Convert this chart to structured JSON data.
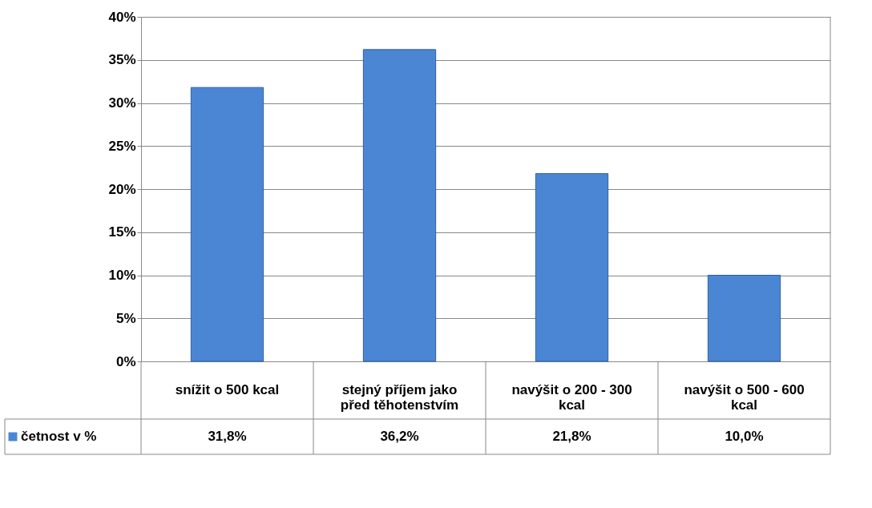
{
  "chart_data": {
    "type": "bar",
    "categories": [
      "snížit o 500 kcal",
      "stejný příjem jako před těhotenstvím",
      "navýšit o 200 - 300 kcal",
      "navýšit o 500 - 600 kcal"
    ],
    "series": [
      {
        "name": "četnost v %",
        "color": "#4a86d4",
        "values": [
          31.8,
          36.2,
          21.8,
          10.0
        ],
        "value_labels": [
          "31,8%",
          "36,2%",
          "21,8%",
          "10,0%"
        ]
      }
    ],
    "ylim": [
      0,
      40
    ],
    "yticks": [
      {
        "value": 0,
        "label": "0%"
      },
      {
        "value": 5,
        "label": "5%"
      },
      {
        "value": 10,
        "label": "10%"
      },
      {
        "value": 15,
        "label": "15%"
      },
      {
        "value": 20,
        "label": "20%"
      },
      {
        "value": 25,
        "label": "25%"
      },
      {
        "value": 30,
        "label": "30%"
      },
      {
        "value": 35,
        "label": "35%"
      },
      {
        "value": 40,
        "label": "40%"
      }
    ],
    "grid": "y",
    "legend": "bottom left"
  }
}
